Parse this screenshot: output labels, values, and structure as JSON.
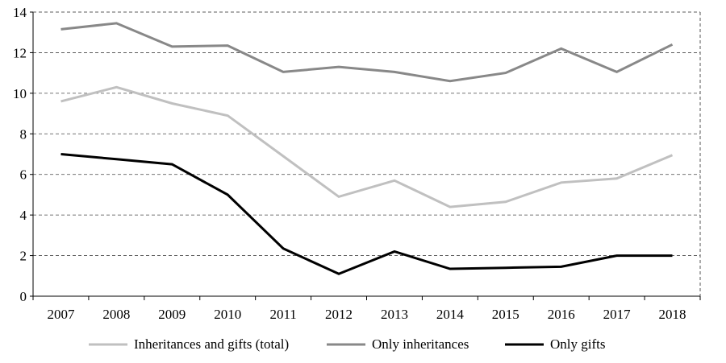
{
  "chart_data": {
    "type": "line",
    "title": "",
    "xlabel": "",
    "ylabel": "",
    "categories": [
      "2007",
      "2008",
      "2009",
      "2010",
      "2011",
      "2012",
      "2013",
      "2014",
      "2015",
      "2016",
      "2017",
      "2018"
    ],
    "ylim": [
      0,
      14
    ],
    "yticks": [
      0,
      2,
      4,
      6,
      8,
      10,
      12,
      14
    ],
    "grid": "horizontal dashed",
    "legend_position": "bottom",
    "series": [
      {
        "name": "Inheritances and gifts (total)",
        "color": "#c0c0c0",
        "values": [
          9.6,
          10.3,
          9.5,
          8.9,
          6.9,
          4.9,
          5.7,
          4.4,
          4.65,
          5.6,
          5.8,
          6.95
        ]
      },
      {
        "name": "Only inheritances",
        "color": "#888888",
        "values": [
          13.15,
          13.45,
          12.3,
          12.35,
          11.05,
          11.3,
          11.05,
          10.6,
          11.0,
          12.2,
          11.05,
          12.4
        ]
      },
      {
        "name": "Only gifts",
        "color": "#000000",
        "values": [
          7.0,
          6.75,
          6.5,
          5.0,
          2.35,
          1.1,
          2.2,
          1.35,
          1.4,
          1.45,
          2.0,
          2.0
        ]
      }
    ]
  }
}
